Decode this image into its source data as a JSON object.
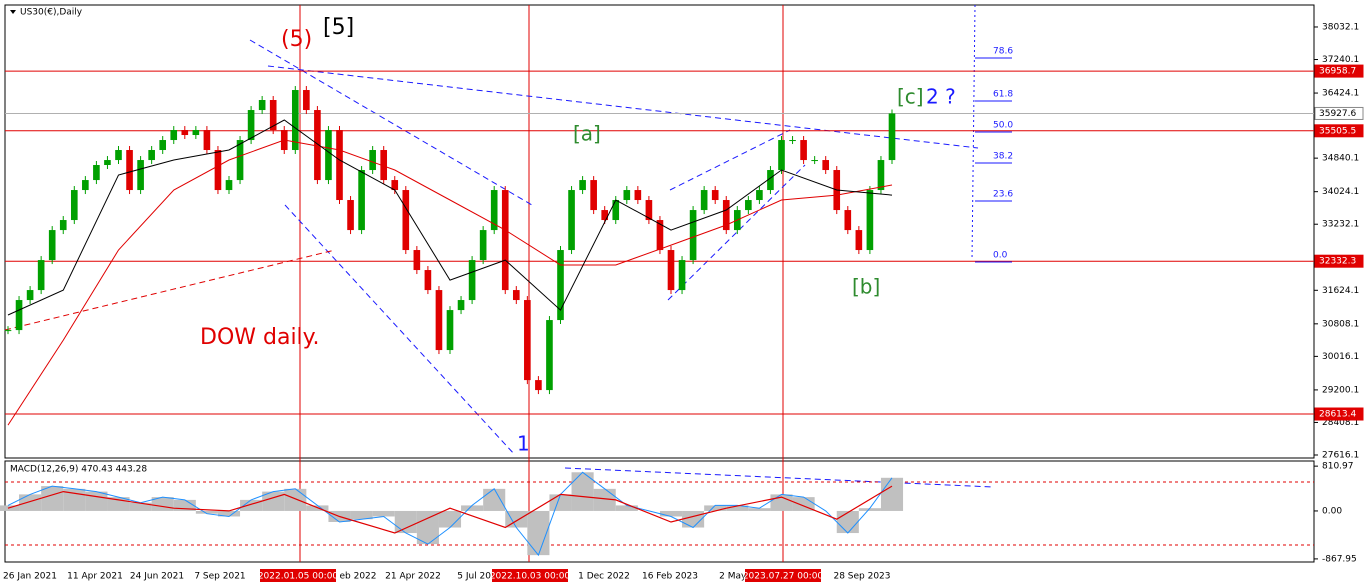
{
  "chart_data": {
    "type": "candlestick",
    "title": "US30(€),Daily",
    "indicator_title": "MACD(12,26,9) 470.43 443.28",
    "x_labels": [
      "26 Jan 2021",
      "11 Apr 2021",
      "24 Jun 2021",
      "7 Sep 2021",
      "2022.01.05 00:00",
      "eb 2022",
      "21 Apr 2022",
      "5 Jul 202",
      "2022.10.03 00:00",
      "1 Dec 2022",
      "16 Feb 2023",
      "2 May 2",
      "2023.07.27 00:00",
      "28 Sep 2023"
    ],
    "close": [
      30656,
      31387,
      31630,
      32360,
      33090,
      33334,
      34064,
      34307,
      34673,
      34794,
      35038,
      34064,
      34794,
      35038,
      35281,
      35524,
      35403,
      35524,
      35038,
      34064,
      34307,
      35281,
      36011,
      36255,
      35524,
      35038,
      36498,
      36011,
      34307,
      35524,
      33821,
      33090,
      34551,
      35038,
      34307,
      34064,
      32604,
      32117,
      31630,
      30170,
      31143,
      31387,
      32360,
      33090,
      34064,
      31630,
      31387,
      29439,
      29196,
      30900,
      32604,
      34064,
      34307,
      33577,
      33334,
      33821,
      34064,
      33821,
      33334,
      32604,
      31630,
      32360,
      33577,
      34064,
      33821,
      33090,
      33577,
      33821,
      34064,
      34551,
      35281,
      35281,
      34794,
      34794,
      34551,
      33577,
      33090,
      32604,
      34064,
      34794,
      35927.6
    ],
    "ma_fast": [
      31022,
      31630,
      34429,
      34794,
      35038,
      35768,
      34794,
      34064,
      31873,
      32360,
      31143,
      33821,
      33090,
      33577,
      34551,
      34064,
      33942
    ],
    "ma_slow": [
      28344,
      30413,
      32604,
      34064,
      34794,
      35281,
      35038,
      34551,
      33821,
      33090,
      32239,
      32239,
      32725,
      33212,
      33821,
      33942,
      34186
    ],
    "ylim": [
      27543,
      38567
    ],
    "yticks": [
      38032.1,
      37240.1,
      36424.1,
      34840.1,
      34024.1,
      33232.1,
      31624.1,
      30808.1,
      30016.1,
      29200.1,
      28408.1,
      27616.1
    ],
    "price_levels": [
      {
        "value": 36958.7,
        "color": "#e00000"
      },
      {
        "value": 35927.6,
        "color": "#ffffff"
      },
      {
        "value": 35505.5,
        "color": "#e00000"
      },
      {
        "value": 32332.3,
        "color": "#e00000"
      },
      {
        "value": 28613.4,
        "color": "#e00000"
      }
    ],
    "macd": [
      100,
      300,
      450,
      400,
      350,
      250,
      150,
      250,
      200,
      -50,
      -100,
      200,
      350,
      400,
      100,
      -200,
      -150,
      -100,
      -400,
      -600,
      -300,
      100,
      400,
      -300,
      -800,
      300,
      700,
      400,
      100,
      0,
      -100,
      -300,
      100,
      100,
      50,
      300,
      250,
      0,
      -400,
      50,
      600
    ],
    "signal": [
      50,
      350,
      200,
      50,
      0,
      300,
      -100,
      -400,
      50,
      -300,
      300,
      200,
      -200,
      50,
      250,
      -150,
      450
    ],
    "macd_ylim": [
      -924,
      904
    ],
    "macd_yticks": [
      810.97,
      {
        "value": 0,
        "label": "0.00"
      },
      -867.95
    ],
    "fib_labels": [
      "78.6",
      "61.8",
      "50.0",
      "38.2",
      "23.6",
      "0.0"
    ],
    "annotations": [
      "(5)",
      "[5]",
      "[a]",
      "[b]",
      "[c]",
      "2 ?",
      "1",
      "DOW daily."
    ],
    "colors": {
      "up": "#00a000",
      "down": "#e00000",
      "ma_fast": "#000000",
      "ma_slow": "#e00000",
      "macd": "#1e90ff",
      "signal": "#e00000",
      "hist": "#c0c0c0"
    }
  }
}
